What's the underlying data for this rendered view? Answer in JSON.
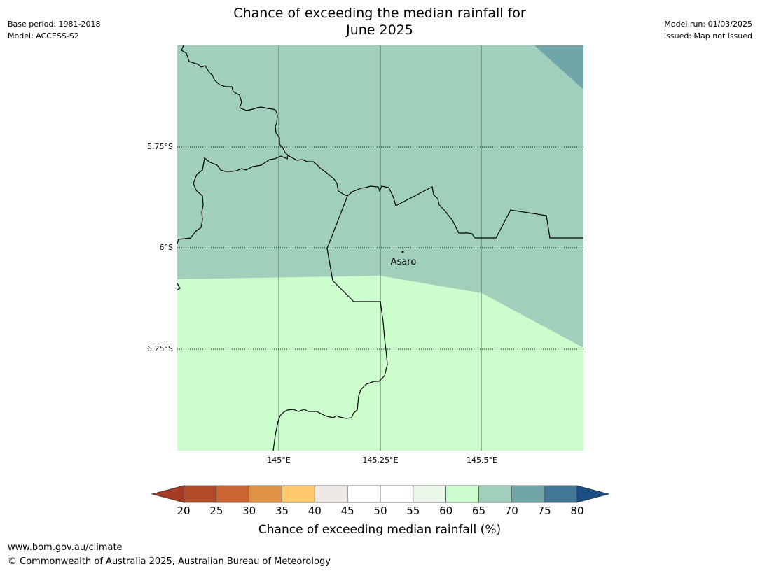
{
  "title": {
    "line1": "Chance of exceeding the median rainfall for",
    "line2": "June 2025"
  },
  "meta": {
    "base_period": "Base period: 1981-2018",
    "model": "Model: ACCESS-S2",
    "model_run": "Model run: 01/03/2025",
    "issued": "Issued: Map not issued"
  },
  "map": {
    "latitude_labels": [
      "5.75°S",
      "6°S",
      "6.25°S"
    ],
    "longitude_labels": [
      "145°E",
      "145.25°E",
      "145.5°E"
    ],
    "place_label": "Asaro",
    "region_colors": {
      "band_65_70": "#a0d0bb",
      "band_70_75": "#70a5a9",
      "band_60_65": "#ccfdcc"
    }
  },
  "colorbar": {
    "title": "Chance of exceeding median rainfall (%)",
    "ticks": [
      "20",
      "25",
      "30",
      "35",
      "40",
      "45",
      "50",
      "55",
      "60",
      "65",
      "70",
      "75",
      "80"
    ],
    "colors": [
      "#a33c22",
      "#b14a25",
      "#cc6432",
      "#e09244",
      "#fec96a",
      "#ede8e3",
      "#ffffff",
      "#ffffff",
      "#eaf6ea",
      "#ccfdcc",
      "#a0d0bb",
      "#70a5a9",
      "#417696",
      "#1a4f85"
    ]
  },
  "footer": {
    "url": "www.bom.gov.au/climate",
    "copyright": "© Commonwealth of Australia 2025, Australian Bureau of Meteorology"
  }
}
